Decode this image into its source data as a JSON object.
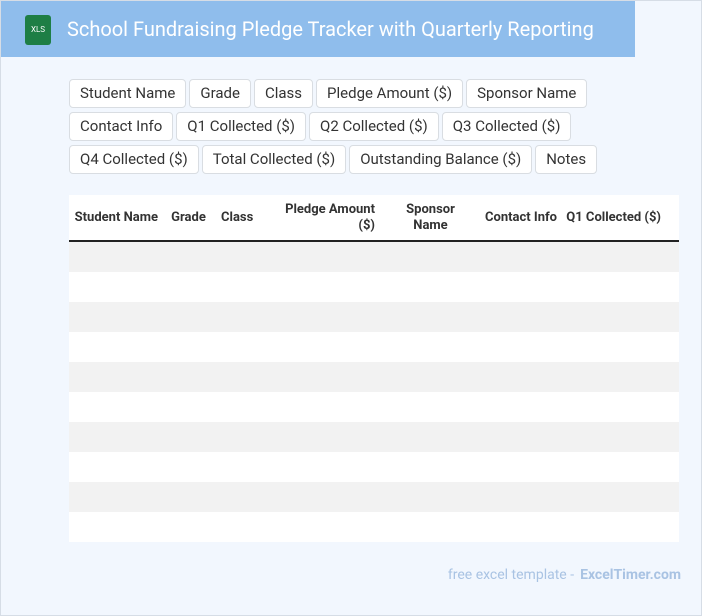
{
  "header": {
    "icon_label": "XLS",
    "title": "School Fundraising Pledge Tracker with Quarterly Reporting"
  },
  "fields": [
    "Student Name",
    "Grade",
    "Class",
    "Pledge Amount ($)",
    "Sponsor Name",
    "Contact Info",
    "Q1 Collected ($)",
    "Q2 Collected ($)",
    "Q3 Collected ($)",
    "Q4 Collected ($)",
    "Total Collected ($)",
    "Outstanding Balance ($)",
    "Notes"
  ],
  "table": {
    "columns": [
      "Student Name",
      "Grade",
      "Class",
      "Pledge Amount ($)",
      "Sponsor Name",
      "Contact Info",
      "Q1 Collected ($)"
    ]
  },
  "footer": {
    "text": "free excel template -",
    "brand": "ExcelTimer.com"
  }
}
